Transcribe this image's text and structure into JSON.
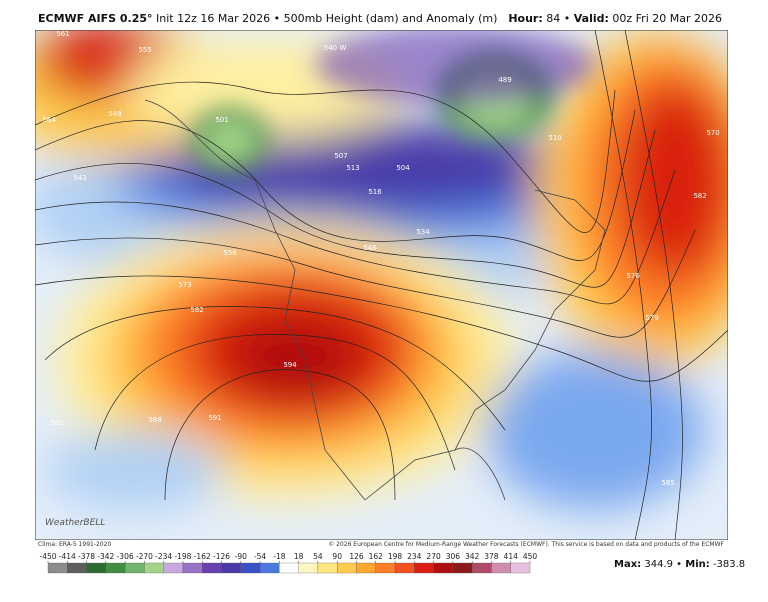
{
  "header": {
    "model": "ECMWF AIFS 0.25°",
    "info": "Init 12z 16 Mar 2026 • 500mb Height (dam) and Anomaly (m)",
    "hour_label": "Hour:",
    "hour": "84 •",
    "valid_label": "Valid:",
    "valid": "00z Fri 20 Mar 2026"
  },
  "map": {
    "contour_labels": [
      "561",
      "555",
      "564",
      "549",
      "543",
      "501",
      "489",
      "507",
      "513",
      "504",
      "516",
      "534",
      "546",
      "558",
      "573",
      "582",
      "594",
      "591",
      "588",
      "582",
      "576",
      "579",
      "585",
      "570",
      "582",
      "540 W",
      "510"
    ],
    "logo": "WeatherBELL"
  },
  "footer": {
    "clima": "Clima: ERA-5 1991-2020",
    "copyright": "© 2026 European Centre for Medium-Range Weather Forecasts (ECMWF). This service is based on data and products of the ECMWF"
  },
  "colorbar": {
    "ticks": [
      -450,
      -414,
      -378,
      -342,
      -306,
      -270,
      -234,
      -198,
      -162,
      -126,
      -90,
      -54,
      -18,
      18,
      54,
      90,
      126,
      162,
      198,
      234,
      270,
      306,
      342,
      378,
      414,
      450
    ]
  },
  "stats": {
    "max_label": "Max:",
    "max": "344.9 •",
    "min_label": "Min:",
    "min": "-383.8"
  }
}
